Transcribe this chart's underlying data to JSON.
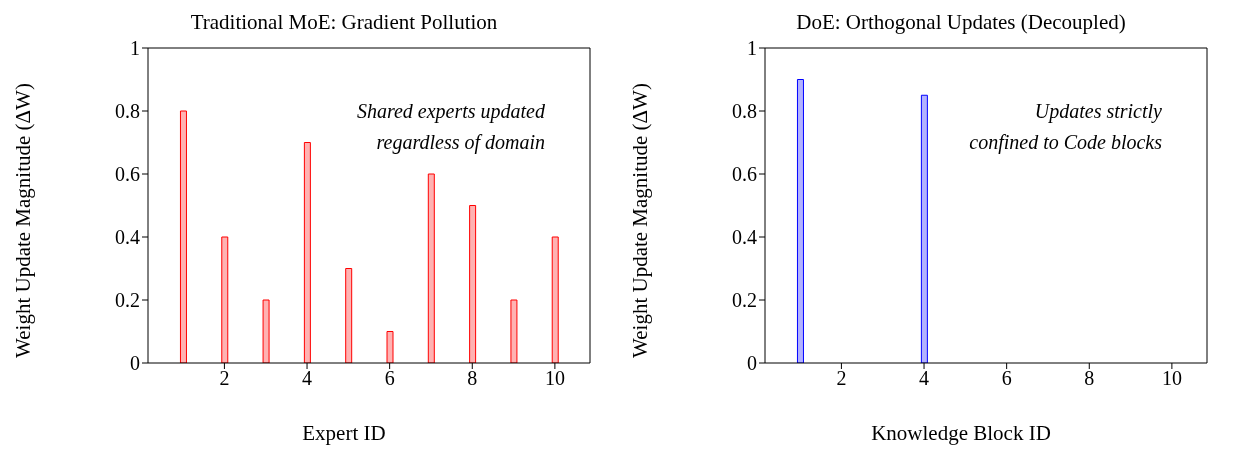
{
  "chart_data": [
    {
      "type": "bar",
      "title": "Traditional MoE: Gradient Pollution",
      "xlabel": "Expert ID",
      "ylabel": "Weight Update Magnitude (ΔW)",
      "x": [
        1,
        2,
        3,
        4,
        5,
        6,
        7,
        8,
        9,
        10
      ],
      "series": [
        {
          "color": "#ff0000",
          "values": [
            0.8,
            0.4,
            0.2,
            0.7,
            0.3,
            0.1,
            0.6,
            0.5,
            0.2,
            0.4
          ]
        }
      ],
      "xlim": [
        0.15,
        10.85
      ],
      "xticks": [
        2,
        4,
        6,
        8,
        10
      ],
      "ylim": [
        0,
        1
      ],
      "yticks": [
        0,
        0.2,
        0.4,
        0.6,
        0.8,
        1
      ],
      "annotations": [
        "Shared experts updated regardless of domain"
      ]
    },
    {
      "type": "bar",
      "title": "DoE: Orthogonal Updates (Decoupled)",
      "xlabel": "Knowledge Block ID",
      "ylabel": "Weight Update Magnitude (ΔW)",
      "x": [
        1,
        2,
        3,
        4,
        5,
        6,
        7,
        8,
        9,
        10
      ],
      "series": [
        {
          "color": "#0000ff",
          "values": [
            0.9,
            0,
            0,
            0.85,
            0,
            0,
            0,
            0,
            0,
            0
          ]
        }
      ],
      "xlim": [
        0.15,
        10.85
      ],
      "xticks": [
        2,
        4,
        6,
        8,
        10
      ],
      "ylim": [
        0,
        1
      ],
      "yticks": [
        0,
        0.2,
        0.4,
        0.6,
        0.8,
        1
      ],
      "annotations": [
        "Updates strictly confined to Code blocks"
      ]
    }
  ]
}
